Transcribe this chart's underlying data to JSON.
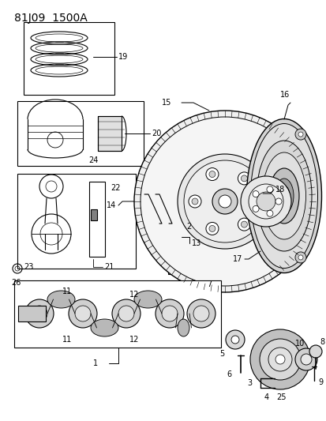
{
  "title": "81J09  1500A",
  "bg_color": "#ffffff",
  "text_color": "#000000",
  "fig_w": 4.14,
  "fig_h": 5.33,
  "dpi": 100,
  "lw": 0.8
}
